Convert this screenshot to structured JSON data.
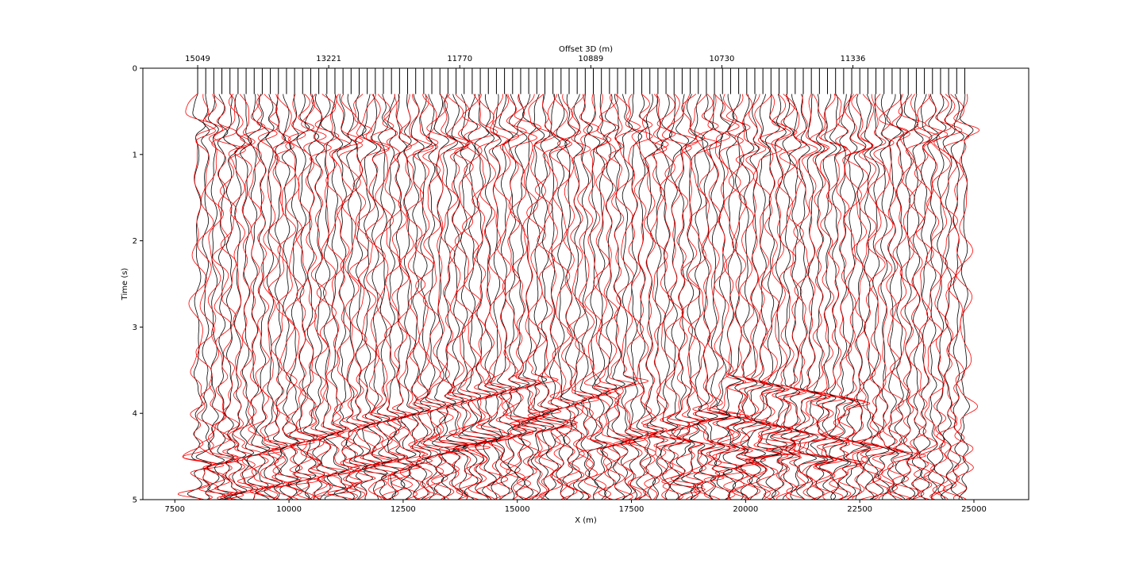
{
  "chart_data": {
    "type": "line",
    "title": "",
    "xlabel": "X (m)",
    "ylabel": "Time (s)",
    "top_xlabel": "Offset 3D (m)",
    "xlim": [
      6800,
      26200
    ],
    "ylim": [
      5,
      0
    ],
    "y_inverted": true,
    "x_ticks": [
      7500,
      10000,
      12500,
      15000,
      17500,
      20000,
      22500,
      25000
    ],
    "x_tick_labels": [
      "7500",
      "10000",
      "12500",
      "15000",
      "17500",
      "20000",
      "22500",
      "25000"
    ],
    "y_ticks": [
      0,
      1,
      2,
      3,
      4,
      5
    ],
    "y_tick_labels": [
      "0",
      "1",
      "2",
      "3",
      "4",
      "5"
    ],
    "top_ticks": [
      8000,
      10870,
      13740,
      16610,
      19480,
      22350
    ],
    "top_tick_labels": [
      "15049",
      "13221",
      "11770",
      "10889",
      "10730",
      "11336"
    ],
    "traces": {
      "count": 96,
      "x_start": 8000,
      "x_end": 24800,
      "time_start": 0.3,
      "time_end": 5.0
    },
    "series": [
      {
        "color": "#000000",
        "style": "wiggle"
      },
      {
        "color": "#ff0000",
        "style": "wiggle"
      }
    ],
    "events": [
      {
        "x_from": 8000,
        "t_from": 4.6,
        "x_to": 15500,
        "t_to": 3.6
      },
      {
        "x_from": 8000,
        "t_from": 5.0,
        "x_to": 16000,
        "t_to": 4.1
      },
      {
        "x_from": 11000,
        "t_from": 4.9,
        "x_to": 17500,
        "t_to": 3.6
      },
      {
        "x_from": 16500,
        "t_from": 4.4,
        "x_to": 19500,
        "t_to": 4.0
      },
      {
        "x_from": 19500,
        "t_from": 3.6,
        "x_to": 22500,
        "t_to": 3.9
      },
      {
        "x_from": 18000,
        "t_from": 4.3,
        "x_to": 22500,
        "t_to": 4.6
      },
      {
        "x_from": 19000,
        "t_from": 4.0,
        "x_to": 23500,
        "t_to": 4.5
      },
      {
        "x_from": 18500,
        "t_from": 4.9,
        "x_to": 21000,
        "t_to": 4.3
      }
    ],
    "grid": false
  }
}
